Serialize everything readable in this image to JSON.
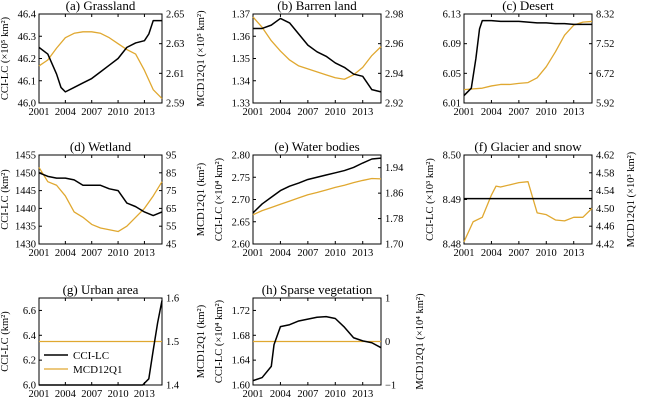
{
  "colors": {
    "cci": "#000000",
    "mcd": "#E0A830"
  },
  "legend": {
    "cci": "CCI-LC",
    "mcd": "MCD12Q1"
  },
  "chart_data": [
    {
      "id": "grassland",
      "type": "line",
      "title": "(a) Grassland",
      "xlim": [
        2001,
        2015
      ],
      "xticks": [
        "2001",
        "2004",
        "2007",
        "2010",
        "2013"
      ],
      "ylabel": "CCI-LC (×10⁵ km²)",
      "ylim": [
        46.0,
        46.4
      ],
      "yticks": [
        "46.0",
        "46.1",
        "46.2",
        "46.3",
        "46.4"
      ],
      "y2label": "MCD12Q1 (×10⁵ km²)",
      "y2lim": [
        2.59,
        2.65
      ],
      "y2ticks": [
        "2.59",
        "2.61",
        "2.63",
        "2.65"
      ],
      "series": [
        {
          "name": "CCI-LC",
          "axis": "left",
          "x": [
            2001,
            2002,
            2003,
            2003.5,
            2004,
            2005,
            2006,
            2007,
            2008,
            2009,
            2010,
            2011,
            2012,
            2013,
            2013.5,
            2014,
            2015
          ],
          "values": [
            46.25,
            46.22,
            46.13,
            46.07,
            46.05,
            46.07,
            46.09,
            46.11,
            46.14,
            46.17,
            46.2,
            46.25,
            46.27,
            46.28,
            46.31,
            46.37,
            46.37
          ]
        },
        {
          "name": "MCD12Q1",
          "axis": "right",
          "x": [
            2001,
            2002,
            2003,
            2004,
            2005,
            2006,
            2007,
            2008,
            2009,
            2010,
            2011,
            2012,
            2013,
            2014,
            2015
          ],
          "values": [
            2.615,
            2.619,
            2.627,
            2.634,
            2.637,
            2.638,
            2.638,
            2.637,
            2.634,
            2.63,
            2.626,
            2.623,
            2.612,
            2.599,
            2.593
          ]
        }
      ]
    },
    {
      "id": "barren",
      "type": "line",
      "title": "(b) Barren land",
      "xlim": [
        2001,
        2015
      ],
      "xticks": [
        "2001",
        "2004",
        "2007",
        "2010",
        "2013"
      ],
      "ylabel": "",
      "ylim": [
        1.33,
        1.37
      ],
      "yticks": [
        "1.33",
        "1.34",
        "1.35",
        "1.36",
        "1.37"
      ],
      "y2label": "",
      "y2lim": [
        2.92,
        2.98
      ],
      "y2ticks": [
        "2.92",
        "2.94",
        "2.96",
        "2.98"
      ],
      "series": [
        {
          "name": "CCI-LC",
          "axis": "left",
          "x": [
            2001,
            2002,
            2003,
            2004,
            2005,
            2006,
            2007,
            2008,
            2009,
            2010,
            2011,
            2012,
            2013,
            2014,
            2015
          ],
          "values": [
            1.3635,
            1.3635,
            1.365,
            1.368,
            1.366,
            1.361,
            1.356,
            1.353,
            1.351,
            1.348,
            1.346,
            1.343,
            1.342,
            1.336,
            1.335
          ]
        },
        {
          "name": "MCD12Q1",
          "axis": "right",
          "x": [
            2001,
            2002,
            2003,
            2004,
            2005,
            2006,
            2007,
            2008,
            2009,
            2010,
            2011,
            2012,
            2013,
            2014,
            2015
          ],
          "values": [
            2.978,
            2.971,
            2.962,
            2.955,
            2.949,
            2.945,
            2.943,
            2.941,
            2.939,
            2.937,
            2.936,
            2.939,
            2.944,
            2.952,
            2.958
          ]
        }
      ]
    },
    {
      "id": "desert",
      "type": "line",
      "title": "(c) Desert",
      "xlim": [
        2001,
        2015
      ],
      "xticks": [
        "2001",
        "2004",
        "2007",
        "2010",
        "2013"
      ],
      "ylabel": "",
      "ylim": [
        6.01,
        6.13
      ],
      "yticks": [
        "6.01",
        "6.05",
        "6.09",
        "6.13"
      ],
      "y2label": "",
      "y2lim": [
        5.92,
        8.32
      ],
      "y2ticks": [
        "5.92",
        "6.72",
        "7.52",
        "8.32"
      ],
      "series": [
        {
          "name": "CCI-LC",
          "axis": "left",
          "x": [
            2001,
            2001.8,
            2002.3,
            2002.7,
            2003,
            2004,
            2005,
            2006,
            2007,
            2008,
            2009,
            2010,
            2011,
            2012,
            2013,
            2014,
            2015
          ],
          "values": [
            6.02,
            6.03,
            6.07,
            6.11,
            6.121,
            6.121,
            6.12,
            6.12,
            6.12,
            6.119,
            6.118,
            6.118,
            6.117,
            6.117,
            6.116,
            6.116,
            6.116
          ]
        },
        {
          "name": "MCD12Q1",
          "axis": "right",
          "x": [
            2001,
            2002,
            2003,
            2004,
            2005,
            2006,
            2007,
            2008,
            2009,
            2010,
            2011,
            2012,
            2013,
            2014,
            2015
          ],
          "values": [
            6.28,
            6.3,
            6.32,
            6.38,
            6.42,
            6.42,
            6.45,
            6.47,
            6.6,
            6.9,
            7.3,
            7.75,
            8.02,
            8.1,
            8.12
          ]
        }
      ]
    },
    {
      "id": "wetland",
      "type": "line",
      "title": "(d) Wetland",
      "xlim": [
        2001,
        2015
      ],
      "xticks": [
        "2001",
        "2004",
        "2007",
        "2010",
        "2013"
      ],
      "ylabel": "CCI-LC (km²)",
      "ylim": [
        1430,
        1455
      ],
      "yticks": [
        "1430",
        "1435",
        "1440",
        "1445",
        "1450",
        "1455"
      ],
      "y2label": "MCD12Q1 (km²)",
      "y2lim": [
        45,
        95
      ],
      "y2ticks": [
        "45",
        "55",
        "65",
        "75",
        "85",
        "95"
      ],
      "series": [
        {
          "name": "CCI-LC",
          "axis": "left",
          "x": [
            2001,
            2002,
            2003,
            2004,
            2005,
            2006,
            2007,
            2008,
            2009,
            2010,
            2011,
            2012,
            2013,
            2014,
            2015
          ],
          "values": [
            1450,
            1449,
            1448.5,
            1448.5,
            1448,
            1446.5,
            1446.5,
            1446.5,
            1445.5,
            1445,
            1441.5,
            1440.5,
            1439,
            1438,
            1439
          ]
        },
        {
          "name": "MCD12Q1",
          "axis": "right",
          "x": [
            2001,
            2002,
            2003,
            2004,
            2005,
            2006,
            2007,
            2008,
            2009,
            2010,
            2011,
            2012,
            2013,
            2014,
            2015
          ],
          "values": [
            88,
            80,
            78,
            72,
            63,
            60,
            56,
            54,
            53,
            52,
            55,
            60,
            65,
            72,
            80
          ]
        }
      ]
    },
    {
      "id": "water",
      "type": "line",
      "title": "(e) Water bodies",
      "xlim": [
        2001,
        2015
      ],
      "xticks": [
        "2001",
        "2004",
        "2007",
        "2010",
        "2013"
      ],
      "ylabel": "CCI-LC (×10⁴ km²)",
      "ylim": [
        2.6,
        2.8
      ],
      "yticks": [
        "2.60",
        "2.65",
        "2.70",
        "2.75",
        "2.80"
      ],
      "y2label": "",
      "y2lim": [
        1.7,
        1.98
      ],
      "y2ticks": [
        "1.70",
        "1.78",
        "1.86",
        "1.94"
      ],
      "series": [
        {
          "name": "CCI-LC",
          "axis": "left",
          "x": [
            2001,
            2002,
            2003,
            2004,
            2005,
            2006,
            2007,
            2008,
            2009,
            2010,
            2011,
            2012,
            2013,
            2014,
            2015
          ],
          "values": [
            2.67,
            2.69,
            2.705,
            2.72,
            2.73,
            2.737,
            2.745,
            2.75,
            2.755,
            2.76,
            2.765,
            2.772,
            2.782,
            2.791,
            2.793
          ]
        },
        {
          "name": "MCD12Q1",
          "axis": "right",
          "x": [
            2001,
            2002,
            2003,
            2004,
            2005,
            2006,
            2007,
            2008,
            2009,
            2010,
            2011,
            2012,
            2013,
            2014,
            2015
          ],
          "values": [
            1.792,
            1.805,
            1.815,
            1.825,
            1.835,
            1.845,
            1.855,
            1.862,
            1.87,
            1.878,
            1.885,
            1.893,
            1.9,
            1.906,
            1.905
          ]
        }
      ]
    },
    {
      "id": "glacier",
      "type": "line",
      "title": "(f) Glacier and snow",
      "xlim": [
        2001,
        2015
      ],
      "xticks": [
        "2001",
        "2004",
        "2007",
        "2010",
        "2013"
      ],
      "ylabel": "CCI-LC (×10³ km²)",
      "ylim": [
        8.48,
        8.5
      ],
      "yticks": [
        "8.48",
        "8.49",
        "8.50"
      ],
      "y2label": "MCD12Q1 (×10³ km²)",
      "y2lim": [
        4.42,
        4.62
      ],
      "y2ticks": [
        "4.42",
        "4.46",
        "4.50",
        "4.54",
        "4.58",
        "4.62"
      ],
      "series": [
        {
          "name": "CCI-LC",
          "axis": "left",
          "x": [
            2001,
            2015
          ],
          "values": [
            8.4902,
            8.4902
          ]
        },
        {
          "name": "MCD12Q1",
          "axis": "right",
          "x": [
            2001,
            2002,
            2003,
            2004,
            2004.5,
            2005,
            2006,
            2007,
            2008,
            2009,
            2010,
            2011,
            2012,
            2013,
            2014,
            2015
          ],
          "values": [
            4.425,
            4.47,
            4.48,
            4.53,
            4.55,
            4.548,
            4.553,
            4.558,
            4.56,
            4.49,
            4.486,
            4.474,
            4.472,
            4.48,
            4.48,
            4.5
          ]
        }
      ]
    },
    {
      "id": "urban",
      "type": "line",
      "title": "(g) Urban area",
      "xlim": [
        2001,
        2015
      ],
      "xticks": [
        "2001",
        "2004",
        "2007",
        "2010",
        "2013"
      ],
      "ylabel": "CCI-LC (km²)",
      "ylim": [
        6.0,
        6.7
      ],
      "yticks": [
        "6.0",
        "6.2",
        "6.4",
        "6.6"
      ],
      "y2label": "MCD12Q1 (km²)",
      "y2lim": [
        1.4,
        1.6
      ],
      "y2ticks": [
        "1.4",
        "1.5",
        "1.6"
      ],
      "series": [
        {
          "name": "CCI-LC",
          "axis": "left",
          "x": [
            2001,
            2012,
            2012.8,
            2013.5,
            2014,
            2014.5,
            2015
          ],
          "values": [
            6.0,
            6.0,
            6.0,
            6.05,
            6.28,
            6.5,
            6.68
          ]
        },
        {
          "name": "MCD12Q1",
          "axis": "right",
          "x": [
            2001,
            2015
          ],
          "values": [
            1.5,
            1.5
          ]
        }
      ]
    },
    {
      "id": "sparse",
      "type": "line",
      "title": "(h) Sparse vegetation",
      "xlim": [
        2001,
        2015
      ],
      "xticks": [
        "2001",
        "2004",
        "2007",
        "2010",
        "2013"
      ],
      "ylabel": "CCI-LC (×10⁴ km²)",
      "ylim": [
        1.6,
        1.74
      ],
      "yticks": [
        "1.60",
        "1.64",
        "1.68",
        "1.72"
      ],
      "y2label": "MCD12Q1 (×10⁴ km²)",
      "y2lim": [
        -1,
        1
      ],
      "y2ticks": [
        "−1",
        "0",
        "1"
      ],
      "series": [
        {
          "name": "CCI-LC",
          "axis": "left",
          "x": [
            2001,
            2002,
            2003,
            2003.3,
            2004,
            2005,
            2006,
            2007,
            2008,
            2009,
            2010,
            2011,
            2012,
            2013,
            2014,
            2015
          ],
          "values": [
            1.607,
            1.612,
            1.63,
            1.665,
            1.694,
            1.697,
            1.703,
            1.706,
            1.709,
            1.71,
            1.707,
            1.693,
            1.676,
            1.671,
            1.668,
            1.66
          ]
        },
        {
          "name": "MCD12Q1",
          "axis": "right",
          "x": [
            2001,
            2015
          ],
          "values": [
            0,
            0
          ]
        }
      ]
    }
  ]
}
